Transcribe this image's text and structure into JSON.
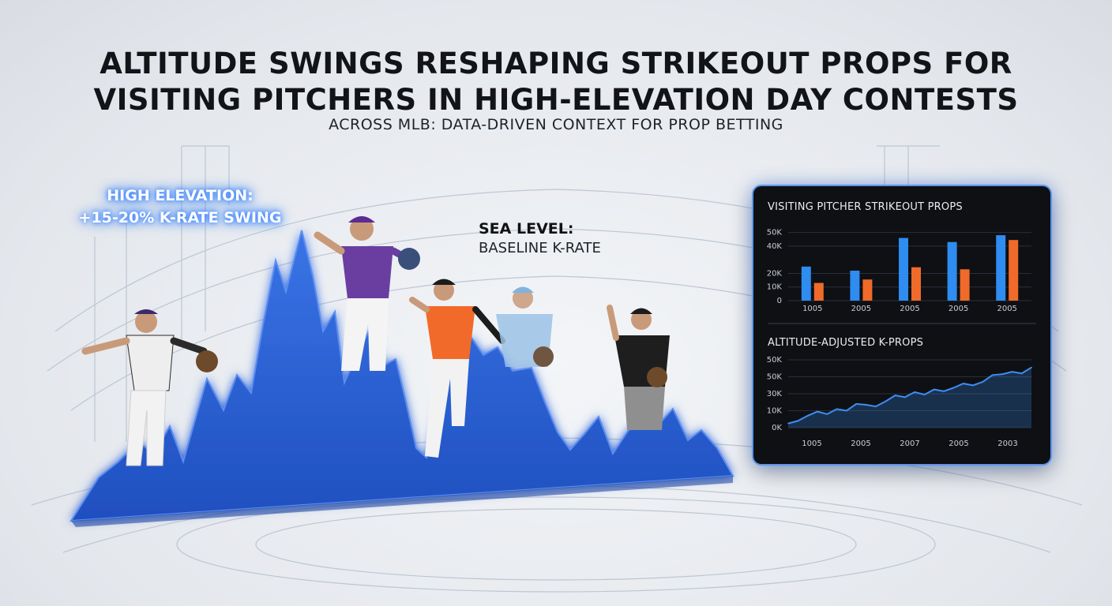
{
  "headline": {
    "line1": "ALTITUDE SWINGS RESHAPING STRIKEOUT PROPS FOR",
    "line2": "VISITING PITCHERS IN HIGH-ELEVATION DAY CONTESTS"
  },
  "subhead": "ACROSS MLB: DATA-DRIVEN CONTEXT FOR PROP BETTING",
  "callouts": {
    "high_line1": "HIGH ELEVATION:",
    "high_line2": "+15-20% K-RATE SWING",
    "sea_title": "SEA LEVEL:",
    "sea_sub": "BASELINE K-RATE"
  },
  "colors": {
    "mountain": "#2a5fd0",
    "bar_blue": "#2f8cf0",
    "bar_orange": "#f06a2a",
    "line": "#3d8ff5",
    "panel_bg": "#0e1014",
    "accent_glow": "#2f7bff"
  },
  "chart_data": [
    {
      "type": "bar",
      "title": "VISITING PITCHER STRIKEOUT PROPS",
      "categories": [
        "1005",
        "2005",
        "2005",
        "2005",
        "2005"
      ],
      "series": [
        {
          "values": [
            25000,
            22000,
            46000,
            43000,
            48000
          ]
        },
        {
          "values": [
            13000,
            15500,
            24500,
            23000,
            44500
          ]
        }
      ],
      "yticks": [
        "0",
        "10K",
        "20K",
        "40K",
        "50K"
      ],
      "ylim": [
        0,
        55000
      ],
      "grid": true
    },
    {
      "type": "area",
      "title": "ALTITUDE-ADJUSTED K-PROPS",
      "x_ticks": [
        "1005",
        "2005",
        "2007",
        "2005",
        "2003"
      ],
      "yticks": [
        "0K",
        "10K",
        "30K",
        "50K",
        "50K"
      ],
      "values": [
        5,
        8,
        14,
        19,
        16,
        22,
        20,
        28,
        27,
        25,
        31,
        38,
        36,
        42,
        39,
        45,
        43,
        47,
        52,
        50,
        54,
        62,
        63,
        66,
        64,
        71
      ],
      "ylim": [
        0,
        80
      ],
      "grid": true
    }
  ]
}
